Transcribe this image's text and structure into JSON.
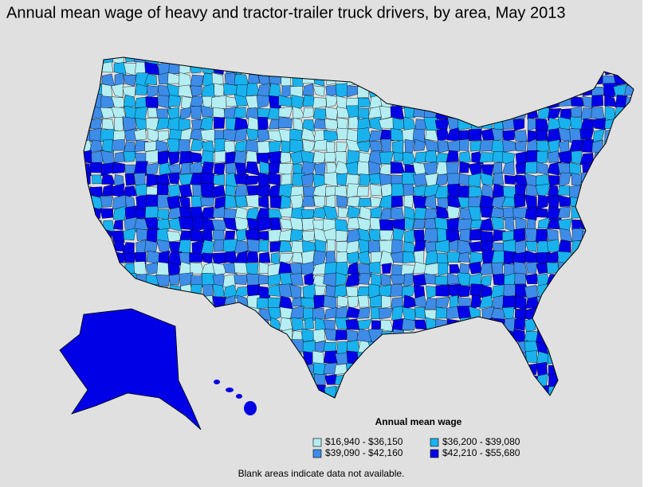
{
  "title": "Annual mean wage of heavy and tractor-trailer truck drivers, by area, May 2013",
  "legend": {
    "title": "Annual mean wage",
    "items": [
      {
        "label": "$16,940 - $36,150",
        "color": "#b4eef2"
      },
      {
        "label": "$36,200 - $39,080",
        "color": "#19b2ee"
      },
      {
        "label": "$39,090 - $42,160",
        "color": "#3d8ce8"
      },
      {
        "label": "$42,210 - $55,680",
        "color": "#0000e6"
      }
    ]
  },
  "note": "Blank areas indicate data not available."
}
